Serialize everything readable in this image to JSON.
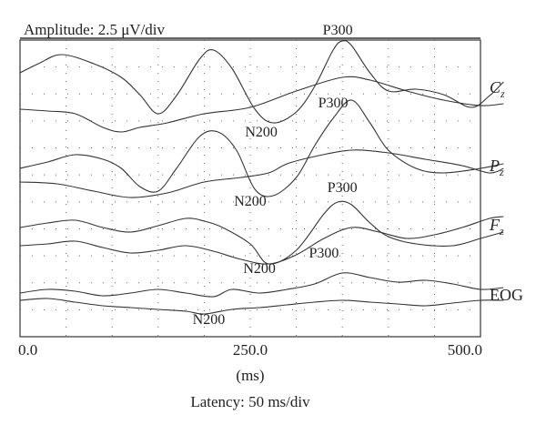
{
  "chart_data": {
    "type": "line",
    "amplitude_label": "Amplitude: 2.5 μV/div",
    "xlabel": "(ms)",
    "latency_label": "Latency: 50 ms/div",
    "xlim": [
      0,
      500
    ],
    "x_ticks": [
      {
        "value": 0,
        "label": "0.0"
      },
      {
        "value": 250,
        "label": "250.0"
      },
      {
        "value": 500,
        "label": "500.0"
      }
    ],
    "grid": true,
    "channels": [
      {
        "name": "C",
        "sub": "z",
        "series": [
          {
            "x": [
              0,
              20,
              45,
              80,
              110,
              130,
              150,
              170,
              195,
              210,
              230,
              255,
              275,
              300,
              320,
              340,
              350,
              360,
              380,
              400,
              430,
              460,
              490,
              510,
              525
            ],
            "y": [
              80,
              70,
              60,
              70,
              85,
              104,
              125,
              105,
              65,
              55,
              75,
              120,
              135,
              123,
              95,
              55,
              45,
              50,
              80,
              100,
              98,
              104,
              118,
              105,
              90
            ]
          },
          {
            "x": [
              0,
              30,
              60,
              90,
              110,
              130,
              160,
              200,
              250,
              300,
              350,
              380,
              420,
              460,
              500,
              525
            ],
            "y": [
              120,
              122,
              125,
              140,
              145,
              140,
              135,
              125,
              118,
              100,
              85,
              88,
              100,
              110,
              116,
              114
            ]
          }
        ],
        "labels": [
          {
            "text": "N200",
            "x": 262,
            "y": 150
          },
          {
            "text": "P300",
            "x": 345,
            "y": 38
          }
        ]
      },
      {
        "name": "P",
        "sub": "z",
        "series": [
          {
            "x": [
              0,
              30,
              60,
              90,
              110,
              130,
              150,
              170,
              195,
              215,
              235,
              255,
              275,
              300,
              320,
              340,
              360,
              380,
              400,
              430,
              460,
              500,
              525
            ],
            "y": [
              185,
              178,
              170,
              175,
              185,
              205,
              210,
              185,
              150,
              145,
              165,
              208,
              215,
              195,
              160,
              130,
              110,
              135,
              165,
              185,
              190,
              185,
              180
            ]
          },
          {
            "x": [
              0,
              40,
              80,
              120,
              160,
              200,
              240,
              270,
              290,
              320,
              360,
              400,
              440,
              480,
              510,
              525
            ],
            "y": [
              200,
              202,
              210,
              217,
              212,
              200,
              195,
              190,
              180,
              172,
              165,
              168,
              175,
              182,
              190,
              185
            ]
          }
        ],
        "labels": [
          {
            "text": "N200",
            "x": 250,
            "y": 226
          },
          {
            "text": "P300",
            "x": 340,
            "y": 118
          }
        ]
      },
      {
        "name": "F",
        "sub": "z",
        "series": [
          {
            "x": [
              0,
              30,
              60,
              90,
              120,
              150,
              180,
              200,
              220,
              250,
              270,
              300,
              330,
              345,
              360,
              380,
              400,
              430,
              470,
              500,
              525
            ],
            "y": [
              250,
              245,
              242,
              250,
              255,
              248,
              240,
              243,
              250,
              268,
              290,
              275,
              235,
              222,
              225,
              245,
              260,
              268,
              270,
              262,
              255
            ]
          },
          {
            "x": [
              0,
              30,
              60,
              90,
              120,
              150,
              180,
              210,
              240,
              270,
              300,
              330,
              360,
              390,
              420,
              450,
              480,
              510,
              525
            ],
            "y": [
              270,
              268,
              265,
              272,
              278,
              275,
              270,
              276,
              285,
              290,
              280,
              262,
              250,
              255,
              262,
              258,
              250,
              240,
              238
            ]
          }
        ],
        "labels": [
          {
            "text": "N200",
            "x": 260,
            "y": 300
          },
          {
            "text": "P300",
            "x": 350,
            "y": 211
          }
        ]
      },
      {
        "name": "EOG",
        "sub": "",
        "series": [
          {
            "x": [
              0,
              30,
              60,
              90,
              120,
              150,
              180,
              210,
              230,
              260,
              290,
              320,
              350,
              380,
              410,
              440,
              470,
              500,
              525
            ],
            "y": [
              322,
              318,
              320,
              325,
              322,
              318,
              322,
              326,
              318,
              322,
              318,
              312,
              300,
              305,
              310,
              308,
              312,
              318,
              316
            ]
          },
          {
            "x": [
              0,
              30,
              60,
              90,
              120,
              150,
              180,
              200,
              230,
              260,
              290,
              320,
              350,
              380,
              410,
              440,
              470,
              500,
              525
            ],
            "y": [
              330,
              328,
              332,
              336,
              338,
              340,
              342,
              345,
              340,
              338,
              335,
              332,
              330,
              332,
              334,
              336,
              333,
              330,
              330
            ]
          }
        ],
        "labels": [
          {
            "text": "N200",
            "x": 205,
            "y": 356
          },
          {
            "text": "P300",
            "x": 330,
            "y": 283
          }
        ]
      }
    ]
  }
}
